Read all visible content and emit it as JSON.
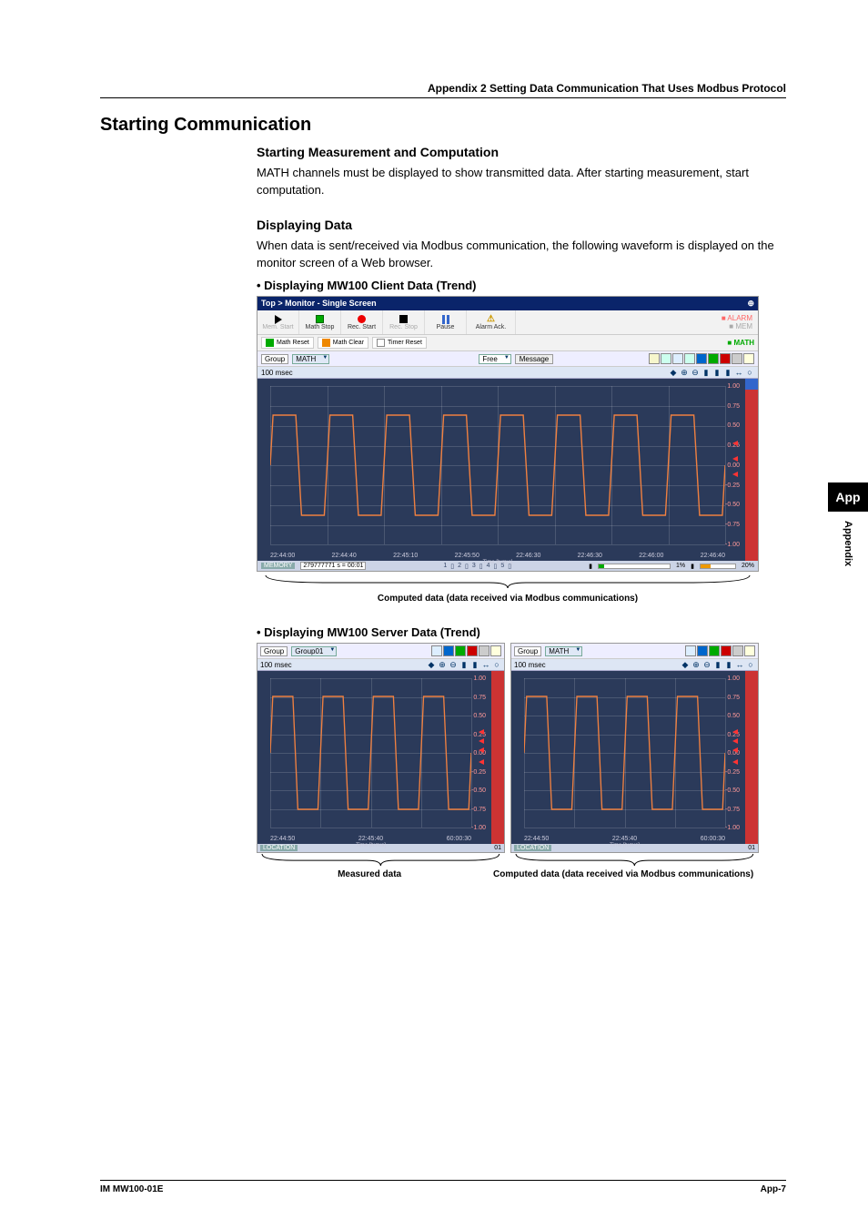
{
  "header": {
    "appendix_line": "Appendix 2  Setting Data Communication That Uses Modbus Protocol"
  },
  "h1": "Starting Communication",
  "sec1": {
    "title": "Starting Measurement and Computation",
    "p1": "MATH channels must be displayed to show transmitted data. After starting measurement, start computation."
  },
  "sec2": {
    "title": "Displaying Data",
    "p1": "When data is sent/received via Modbus communication, the following waveform is displayed on the monitor screen of a Web browser."
  },
  "bullet1": "Displaying MW100 Client Data (Trend)",
  "bullet2": "Displaying MW100 Server Data (Trend)",
  "sidebar": {
    "box": "App",
    "label": "Appendix"
  },
  "footer": {
    "left": "IM MW100-01E",
    "right": "App-7"
  },
  "shot1": {
    "titlebar": "Top > Monitor - Single Screen",
    "titlebar_icon": "⊕",
    "toolbar": {
      "mem_start": "Mem. Start",
      "math_stop": "Math Stop",
      "rec_start": "Rec. Start",
      "rec_stop": "Rec. Stop",
      "pause": "Pause",
      "alarm_ack": "Alarm Ack.",
      "math_reset": "Math Reset",
      "math_clear": "Math Clear",
      "timer_reset": "Timer Reset"
    },
    "status": {
      "alarm": "■ ALARM",
      "mem": "■ MEM",
      "math": "■ MATH"
    },
    "group_label": "Group",
    "group_value": "MATH",
    "msg_value": "Free",
    "msg_btn": "Message",
    "sub_left": "100 msec",
    "ylabels": [
      "1.00",
      "0.75",
      "0.50",
      "0.25",
      "0.00",
      "-0.25",
      "-0.50",
      "-0.75",
      "-1.00"
    ],
    "xlabels": [
      "22:44:00",
      "22:44:40",
      "22:45:10",
      "22:45:50",
      "22:46:30",
      "22:46:30",
      "22:46:00",
      "22:46:40"
    ],
    "xcenter": "Time [h:m:s]",
    "footer_tag": "MEMORY",
    "footer_dd": "279777771 s  = 00:01",
    "footer_pct1": "1%",
    "footer_pct2": "20%",
    "caption": "Computed data (data received via Modbus communications)",
    "series_color": "#f08040",
    "grid_color": "rgba(255,255,255,0.15)",
    "chart_bg": "#2b3a5a"
  },
  "shot2": {
    "left": {
      "group_label": "Group",
      "group_value": "Group01",
      "sub_left": "100 msec",
      "ylabels": [
        "1.00",
        "0.75",
        "0.50",
        "0.25",
        "0.00",
        "-0.25",
        "-0.50",
        "-0.75",
        "-1.00"
      ],
      "xlabels": [
        "22:44:50",
        "22:45:40",
        "60:00:30"
      ],
      "xcenter": "Time [h:m:s]",
      "footer_tag": "LOCATION",
      "series_color": "#f08040",
      "caption": "Measured data"
    },
    "right": {
      "group_label": "Group",
      "group_value": "MATH",
      "sub_left": "100 msec",
      "ylabels": [
        "1.00",
        "0.75",
        "0.50",
        "0.25",
        "0.00",
        "-0.25",
        "-0.50",
        "-0.75",
        "-1.00"
      ],
      "xlabels": [
        "22:44:50",
        "22:45:40",
        "60:00:30"
      ],
      "xcenter": "Time [h:m:s]",
      "footer_tag": "LOCATION",
      "series_color": "#f08040",
      "caption": "Computed data (data received via Modbus communications)"
    }
  }
}
